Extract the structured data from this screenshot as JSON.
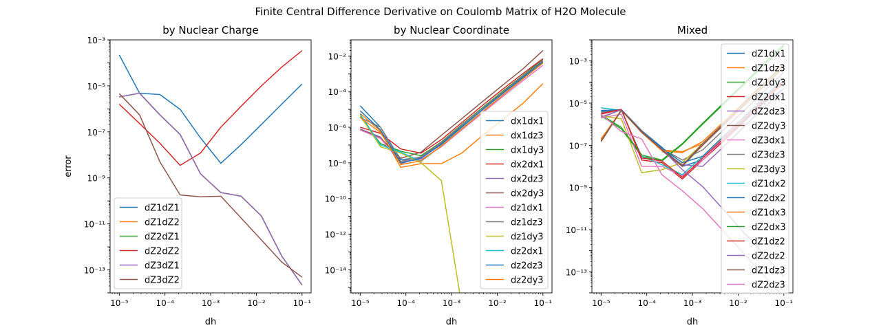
{
  "figure": {
    "suptitle": "Finite Central Difference Derivative on Coulomb Matrix of H2O Molecule"
  },
  "colors": [
    "#1f77b4",
    "#ff7f0e",
    "#2ca02c",
    "#d62728",
    "#9467bd",
    "#8c564b",
    "#e377c2",
    "#7f7f7f",
    "#bcbd22",
    "#17becf"
  ],
  "chart_data": [
    {
      "type": "line",
      "title": "by Nuclear Charge",
      "xlabel": "dh",
      "ylabel": "error",
      "xscale": "log",
      "yscale": "log",
      "xlim": [
        6.3e-06,
        0.158
      ],
      "ylim": [
        1e-14,
        0.001
      ],
      "x_ticks": [
        1e-05,
        0.0001,
        0.001,
        0.01,
        0.1
      ],
      "x_tick_labels": [
        "10⁻⁵",
        "10⁻⁴",
        "10⁻³",
        "10⁻²",
        "10⁻¹"
      ],
      "y_ticks": [
        1e-13,
        1e-11,
        1e-09,
        1e-07,
        1e-05,
        0.001
      ],
      "y_tick_labels": [
        "10⁻¹³",
        "10⁻¹¹",
        "10⁻⁹",
        "10⁻⁷",
        "10⁻⁵",
        "10⁻³"
      ],
      "legend_position": "lower-left",
      "x": [
        1e-05,
        2.78e-05,
        7.74e-05,
        0.000215,
        0.000599,
        0.00167,
        0.00464,
        0.0129,
        0.0359,
        0.1
      ],
      "series": [
        {
          "name": "dZ1dZ1",
          "values": [
            0.00022,
            4.8e-06,
            4.2e-06,
            9.5e-07,
            5.5e-08,
            4.3e-09,
            2.8e-08,
            2.1e-07,
            1.6e-06,
            1.2e-05
          ]
        },
        {
          "name": "dZ1dZ2",
          "values": [
            3.3e-06,
            4.8e-06,
            5.5e-07,
            7.7e-08,
            1.5e-09,
            2.3e-10,
            1.6e-10,
            2.2e-11,
            4e-13,
            2.2e-14
          ]
        },
        {
          "name": "dZ2dZ1",
          "values": [
            3.3e-06,
            4.8e-06,
            5.5e-07,
            7.7e-08,
            1.5e-09,
            2.3e-10,
            1.6e-10,
            2.2e-11,
            4e-13,
            2.2e-14
          ]
        },
        {
          "name": "dZ2dZ2",
          "values": [
            1.6e-06,
            2.3e-07,
            3.2e-08,
            3.5e-09,
            1.2e-08,
            1.6e-07,
            1.3e-06,
            1e-05,
            6.5e-05,
            0.00034
          ]
        },
        {
          "name": "dZ3dZ1",
          "values": [
            3.3e-06,
            4.8e-06,
            5.5e-07,
            7.7e-08,
            1.5e-09,
            2.3e-10,
            1.6e-10,
            2.2e-11,
            4e-13,
            2.2e-14
          ]
        },
        {
          "name": "dZ3dZ2",
          "values": [
            4.6e-06,
            5.5e-07,
            5e-09,
            1.8e-10,
            1.5e-10,
            1.6e-10,
            1.8e-11,
            2e-12,
            2.2e-13,
            4.8e-14
          ]
        }
      ]
    },
    {
      "type": "line",
      "title": "by Nuclear Coordinate",
      "xlabel": "dh",
      "ylabel": "",
      "xscale": "log",
      "yscale": "log",
      "xlim": [
        6.3e-06,
        0.158
      ],
      "ylim": [
        5e-16,
        0.08
      ],
      "x_ticks": [
        1e-05,
        0.0001,
        0.001,
        0.01,
        0.1
      ],
      "x_tick_labels": [
        "10⁻⁵",
        "10⁻⁴",
        "10⁻³",
        "10⁻²",
        "10⁻¹"
      ],
      "y_ticks": [
        1e-14,
        1e-12,
        1e-10,
        1e-08,
        1e-06,
        0.0001,
        0.01
      ],
      "y_tick_labels": [
        "10⁻¹⁴",
        "10⁻¹²",
        "10⁻¹⁰",
        "10⁻⁸",
        "10⁻⁶",
        "10⁻⁴",
        "10⁻²"
      ],
      "legend_position": "lower-right",
      "x": [
        1e-05,
        2.78e-05,
        7.74e-05,
        0.000215,
        0.000599,
        0.00167,
        0.00464,
        0.0129,
        0.0359,
        0.1
      ],
      "series": [
        {
          "name": "dx1dx1",
          "values": [
            1.6e-05,
            1e-06,
            1.5e-08,
            2e-08,
            1.2e-07,
            1.2e-06,
            1.1e-05,
            8e-05,
            0.00065,
            0.005
          ]
        },
        {
          "name": "dx1dz3",
          "values": [
            6e-06,
            6e-07,
            5.5e-09,
            9e-09,
            9e-09,
            3.5e-08,
            3.2e-07,
            2.6e-06,
            2.1e-05,
            0.00028
          ]
        },
        {
          "name": "dx1dy3",
          "values": [
            4e-06,
            1.2e-07,
            4.5e-08,
            2.5e-08,
            1.5e-07,
            1.4e-06,
            1.2e-05,
            0.0001,
            0.0008,
            0.0065
          ]
        },
        {
          "name": "dx2dx1",
          "values": [
            1e-06,
            4.5e-07,
            6e-08,
            3.5e-08,
            2e-07,
            1.8e-06,
            1.6e-05,
            0.00013,
            0.001,
            0.007
          ]
        },
        {
          "name": "dx2dz3",
          "values": [
            8e-07,
            2.8e-07,
            9e-09,
            2e-08,
            1.1e-07,
            1e-06,
            9e-06,
            7.5e-05,
            0.0006,
            0.0045
          ]
        },
        {
          "name": "dx2dy3",
          "values": [
            7.5e-07,
            2.5e-07,
            1.8e-08,
            4e-08,
            3.5e-07,
            3e-06,
            2.6e-05,
            0.00022,
            0.0018,
            0.02
          ]
        },
        {
          "name": "dz1dx1",
          "values": [
            7e-07,
            2.3e-07,
            1.2e-08,
            1.5e-08,
            8e-08,
            7e-07,
            6e-06,
            5e-05,
            0.0004,
            0.003
          ]
        },
        {
          "name": "dz1dz3",
          "values": [
            3.5e-06,
            1e-06,
            1.2e-08,
            2.2e-08,
            1.4e-07,
            1.3e-06,
            1.1e-05,
            9e-05,
            0.00075,
            0.0055
          ]
        },
        {
          "name": "dz1dy3",
          "values": [
            4.5e-06,
            8e-08,
            3.5e-08,
            1e-08,
            1e-09,
            1e-16,
            1e-16,
            1e-16,
            1e-16,
            1e-16
          ]
        },
        {
          "name": "dz2dx1",
          "values": [
            5.5e-06,
            1e-07,
            4e-08,
            1.2e-08,
            9e-08,
            8e-07,
            7e-06,
            6e-05,
            0.0005,
            0.004
          ]
        },
        {
          "name": "dz2dz3",
          "values": [
            8.5e-06,
            7e-07,
            1e-08,
            1.8e-08,
            1.1e-07,
            1e-06,
            9e-06,
            7.5e-05,
            0.0006,
            0.0045
          ]
        },
        {
          "name": "dz2dy3",
          "values": [
            3.5e-06,
            5e-07,
            8e-09,
            1.3e-08,
            9e-08,
            8e-07,
            7e-06,
            6e-05,
            0.0005,
            0.004
          ]
        }
      ]
    },
    {
      "type": "line",
      "title": "Mixed",
      "xlabel": "dh",
      "ylabel": "",
      "xscale": "log",
      "yscale": "log",
      "xlim": [
        6.3e-06,
        0.158
      ],
      "ylim": [
        1e-14,
        0.01
      ],
      "x_ticks": [
        1e-05,
        0.0001,
        0.001,
        0.01,
        0.1
      ],
      "x_tick_labels": [
        "10⁻⁵",
        "10⁻⁴",
        "10⁻³",
        "10⁻²",
        "10⁻¹"
      ],
      "y_ticks": [
        1e-13,
        1e-11,
        1e-09,
        1e-07,
        1e-05,
        0.001
      ],
      "y_tick_labels": [
        "10⁻¹³",
        "10⁻¹¹",
        "10⁻⁹",
        "10⁻⁷",
        "10⁻⁵",
        "10⁻³"
      ],
      "legend_position": "upper-right",
      "x": [
        1e-05,
        2.78e-05,
        7.74e-05,
        0.000215,
        0.000599,
        0.00167,
        0.00464,
        0.0129,
        0.0359,
        0.1
      ],
      "series": [
        {
          "name": "dZ1dx1",
          "values": [
            4e-06,
            5e-06,
            5e-07,
            8e-08,
            1e-08,
            2e-08,
            1.5e-07,
            1.2e-06,
            1e-05,
            5e-05
          ]
        },
        {
          "name": "dZ1dz3",
          "values": [
            2e-07,
            4.5e-06,
            4e-07,
            6e-08,
            5e-08,
            1.2e-07,
            1e-06,
            8e-06,
            7e-05,
            0.0006
          ]
        },
        {
          "name": "dZ1dy3",
          "values": [
            2.5e-06,
            6e-07,
            3e-08,
            1.8e-08,
            1.1e-07,
            1e-06,
            8.5e-06,
            7e-05,
            0.0006,
            0.005
          ]
        },
        {
          "name": "dZ2dx1",
          "values": [
            3e-06,
            5e-06,
            2e-08,
            1.5e-08,
            2.5e-09,
            2e-08,
            1.5e-07,
            1.3e-06,
            1.1e-05,
            0.0001
          ]
        },
        {
          "name": "dZ2dz3",
          "values": [
            2e-06,
            5e-06,
            4e-07,
            6e-08,
            1.2e-08,
            1e-08,
            8e-08,
            7e-07,
            6e-06,
            5e-05
          ]
        },
        {
          "name": "dZ2dy3",
          "values": [
            1.5e-07,
            4.5e-06,
            4.5e-07,
            5.5e-08,
            1e-08,
            1e-07,
            8.5e-07,
            7e-06,
            6e-05,
            0.0005
          ]
        },
        {
          "name": "dZ3dx1",
          "values": [
            2e-06,
            3e-06,
            1e-08,
            1e-08,
            3.5e-09,
            2e-08,
            1.8e-07,
            1.5e-06,
            1.3e-05,
            0.00012
          ]
        },
        {
          "name": "dZ3dz3",
          "values": [
            3.5e-06,
            5e-06,
            5e-07,
            7e-08,
            2e-08,
            6e-08,
            5e-07,
            4e-06,
            3.5e-05,
            0.0003
          ]
        },
        {
          "name": "dZ3dy3",
          "values": [
            2.5e-06,
            1.8e-06,
            5e-09,
            7e-09,
            1.5e-08,
            1.2e-07,
            1e-06,
            8.5e-06,
            7e-05,
            0.0006
          ]
        },
        {
          "name": "dZ1dx2",
          "values": [
            6e-06,
            4.5e-06,
            3e-08,
            1.2e-08,
            4e-09,
            3e-08,
            2.5e-07,
            2e-06,
            1.7e-05,
            0.00015
          ]
        },
        {
          "name": "dZ2dx2",
          "values": [
            4.5e-06,
            4.8e-06,
            4.5e-07,
            7.5e-08,
            1.5e-08,
            3e-08,
            2.5e-07,
            2e-06,
            1.7e-05,
            0.00015
          ]
        },
        {
          "name": "dZ1dx3",
          "values": [
            1.8e-07,
            4.8e-06,
            4e-07,
            5.5e-08,
            4.5e-08,
            1.5e-07,
            1.2e-06,
            1e-05,
            8.5e-05,
            0.0007
          ]
        },
        {
          "name": "dZ2dx3",
          "values": [
            2.8e-06,
            7e-07,
            3.5e-08,
            2e-08,
            1.2e-07,
            1.1e-06,
            9.5e-06,
            8e-05,
            0.0007,
            0.006
          ]
        },
        {
          "name": "dZ1dz2",
          "values": [
            3.2e-06,
            5e-06,
            2.5e-08,
            1.8e-08,
            3e-09,
            2.5e-08,
            2e-07,
            1.6e-06,
            1.4e-05,
            0.00012
          ]
        },
        {
          "name": "dZ2dz2",
          "values": [
            2.2e-06,
            4.8e-06,
            4.2e-07,
            6.5e-08,
            7e-09,
            1.1e-09,
            9.5e-11,
            8e-12,
            7e-13,
            6e-14
          ]
        },
        {
          "name": "dZ1dz3",
          "values": [
            1.6e-07,
            4.6e-06,
            4.3e-07,
            6.2e-08,
            1.1e-08,
            1.2e-07,
            1e-06,
            9e-06,
            8e-05,
            0.0007
          ]
        },
        {
          "name": "dZ2dz3",
          "values": [
            3e-06,
            4.5e-07,
            2e-07,
            4e-09,
            7e-10,
            1e-10,
            9e-12,
            8e-13,
            7e-14,
            6e-15
          ]
        }
      ]
    }
  ]
}
